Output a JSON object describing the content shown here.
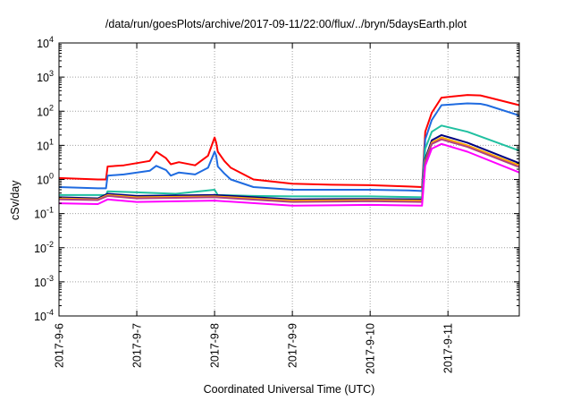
{
  "chart_data": {
    "type": "line",
    "title": "/data/run/goesPlots/archive/2017-09-11/22:00/flux/../bryn/5daysEarth.plot",
    "xlabel": "Coordinated Universal Time (UTC)",
    "ylabel": "cSv/day",
    "y_scale": "log",
    "ylim": [
      0.0001,
      10000
    ],
    "xlim": [
      "2017-9-6",
      "2017-9-11 22:00"
    ],
    "x_tick_labels": [
      "2017-9-6",
      "2017-9-7",
      "2017-9-8",
      "2017-9-9",
      "2017-9-10",
      "2017-9-11"
    ],
    "y_ticks": [
      {
        "base": "10",
        "exp": "-4"
      },
      {
        "base": "10",
        "exp": "-3"
      },
      {
        "base": "10",
        "exp": "-2"
      },
      {
        "base": "10",
        "exp": "-1"
      },
      {
        "base": "10",
        "exp": "0"
      },
      {
        "base": "10",
        "exp": "1"
      },
      {
        "base": "10",
        "exp": "2"
      },
      {
        "base": "10",
        "exp": "3"
      },
      {
        "base": "10",
        "exp": "4"
      }
    ],
    "grid": true,
    "series": [
      {
        "color": "#ff0000",
        "x": [
          "2017-9-6 00:00",
          "2017-9-6 12:00",
          "2017-9-6 14:30",
          "2017-9-6 15:00",
          "2017-9-6 20:00",
          "2017-9-7 04:00",
          "2017-9-7 06:00",
          "2017-9-7 09:00",
          "2017-9-7 10:30",
          "2017-9-7 13:00",
          "2017-9-7 18:00",
          "2017-9-7 22:00",
          "2017-9-8 00:00",
          "2017-9-8 00:30",
          "2017-9-8 01:00",
          "2017-9-8 03:00",
          "2017-9-8 05:00",
          "2017-9-8 12:00",
          "2017-9-9 00:00",
          "2017-9-9 12:00",
          "2017-9-10 00:00",
          "2017-9-10 12:00",
          "2017-9-10 16:00",
          "2017-9-10 17:00",
          "2017-9-10 19:00",
          "2017-9-10 22:00",
          "2017-9-11 06:00",
          "2017-9-11 10:00",
          "2017-9-11 12:00",
          "2017-9-11 22:00"
        ],
        "y": [
          1.1,
          1.0,
          1.0,
          2.4,
          2.6,
          3.5,
          6.5,
          4.2,
          2.8,
          3.2,
          2.6,
          5.0,
          17,
          12,
          6.5,
          3.5,
          2.2,
          1.0,
          0.75,
          0.7,
          0.68,
          0.62,
          0.6,
          25,
          90,
          250,
          300,
          290,
          260,
          150
        ]
      },
      {
        "color": "#1f6be0",
        "x": [
          "2017-9-6 00:00",
          "2017-9-6 12:00",
          "2017-9-6 14:30",
          "2017-9-6 15:00",
          "2017-9-6 20:00",
          "2017-9-7 04:00",
          "2017-9-7 06:00",
          "2017-9-7 09:00",
          "2017-9-7 10:30",
          "2017-9-7 13:00",
          "2017-9-7 18:00",
          "2017-9-7 22:00",
          "2017-9-8 00:00",
          "2017-9-8 00:30",
          "2017-9-8 01:00",
          "2017-9-8 03:00",
          "2017-9-8 05:00",
          "2017-9-8 12:00",
          "2017-9-9 00:00",
          "2017-9-9 12:00",
          "2017-9-10 00:00",
          "2017-9-10 12:00",
          "2017-9-10 16:00",
          "2017-9-10 17:00",
          "2017-9-10 19:00",
          "2017-9-10 22:00",
          "2017-9-11 06:00",
          "2017-9-11 10:00",
          "2017-9-11 12:00",
          "2017-9-11 22:00"
        ],
        "y": [
          0.6,
          0.55,
          0.55,
          1.3,
          1.4,
          1.8,
          2.5,
          1.9,
          1.3,
          1.6,
          1.4,
          2.2,
          6.5,
          5.0,
          2.4,
          1.5,
          1.0,
          0.6,
          0.5,
          0.5,
          0.5,
          0.48,
          0.46,
          15,
          55,
          150,
          170,
          165,
          150,
          75
        ]
      },
      {
        "color": "#20c0a0",
        "x": [
          "2017-9-6 00:00",
          "2017-9-6 12:00",
          "2017-9-6 14:30",
          "2017-9-6 15:00",
          "2017-9-7 00:00",
          "2017-9-7 12:00",
          "2017-9-8 00:00",
          "2017-9-8 01:00",
          "2017-9-8 12:00",
          "2017-9-9 00:00",
          "2017-9-10 00:00",
          "2017-9-10 16:00",
          "2017-9-10 17:00",
          "2017-9-10 19:00",
          "2017-9-10 22:00",
          "2017-9-11 06:00",
          "2017-9-11 22:00"
        ],
        "y": [
          0.35,
          0.35,
          0.35,
          0.45,
          0.42,
          0.38,
          0.5,
          0.35,
          0.33,
          0.32,
          0.32,
          0.3,
          8,
          25,
          38,
          25,
          7
        ]
      },
      {
        "color": "#000080",
        "x": [
          "2017-9-6 00:00",
          "2017-9-6 12:00",
          "2017-9-6 15:00",
          "2017-9-7 00:00",
          "2017-9-8 00:00",
          "2017-9-9 00:00",
          "2017-9-10 00:00",
          "2017-9-10 16:00",
          "2017-9-10 17:00",
          "2017-9-10 19:00",
          "2017-9-10 22:00",
          "2017-9-11 06:00",
          "2017-9-11 22:00"
        ],
        "y": [
          0.3,
          0.28,
          0.38,
          0.33,
          0.35,
          0.26,
          0.27,
          0.26,
          4,
          14,
          20,
          12,
          3
        ]
      },
      {
        "color": "#ffaa00",
        "x": [
          "2017-9-6 00:00",
          "2017-9-6 12:00",
          "2017-9-6 15:00",
          "2017-9-7 00:00",
          "2017-9-8 00:00",
          "2017-9-9 00:00",
          "2017-9-10 00:00",
          "2017-9-10 16:00",
          "2017-9-10 17:00",
          "2017-9-10 19:00",
          "2017-9-10 22:00",
          "2017-9-11 06:00",
          "2017-9-11 22:00"
        ],
        "y": [
          0.28,
          0.26,
          0.35,
          0.3,
          0.32,
          0.24,
          0.25,
          0.24,
          3.5,
          12,
          17,
          10,
          2.6
        ]
      },
      {
        "color": "#b04080",
        "x": [
          "2017-9-6 00:00",
          "2017-9-6 12:00",
          "2017-9-6 15:00",
          "2017-9-7 00:00",
          "2017-9-8 00:00",
          "2017-9-9 00:00",
          "2017-9-10 00:00",
          "2017-9-10 16:00",
          "2017-9-10 17:00",
          "2017-9-10 19:00",
          "2017-9-10 22:00",
          "2017-9-11 06:00",
          "2017-9-11 22:00"
        ],
        "y": [
          0.26,
          0.25,
          0.33,
          0.28,
          0.3,
          0.22,
          0.23,
          0.22,
          3.2,
          11,
          15,
          9,
          2.3
        ]
      },
      {
        "color": "#ff00ff",
        "x": [
          "2017-9-6 00:00",
          "2017-9-6 12:00",
          "2017-9-6 15:00",
          "2017-9-7 00:00",
          "2017-9-8 00:00",
          "2017-9-9 00:00",
          "2017-9-10 00:00",
          "2017-9-10 16:00",
          "2017-9-10 17:00",
          "2017-9-10 19:00",
          "2017-9-10 22:00",
          "2017-9-11 06:00",
          "2017-9-11 22:00"
        ],
        "y": [
          0.2,
          0.19,
          0.26,
          0.22,
          0.24,
          0.17,
          0.18,
          0.17,
          2.5,
          8,
          11,
          6.5,
          1.6
        ]
      }
    ]
  }
}
